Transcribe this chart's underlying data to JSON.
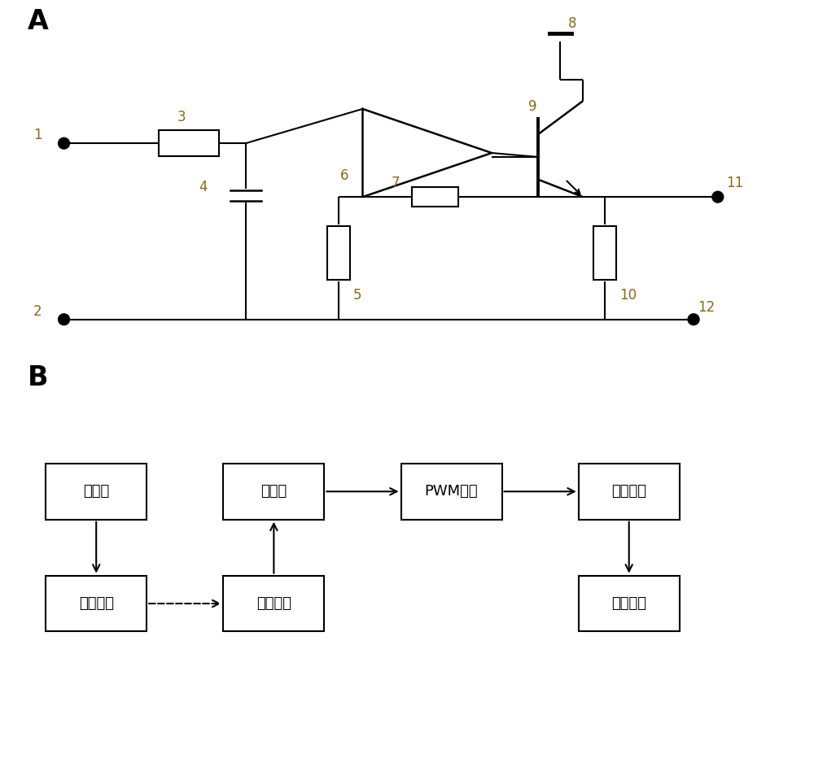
{
  "bg_color": "#ffffff",
  "line_color": "#000000",
  "label_color": "#8B6914",
  "figsize": [
    10.0,
    9.43
  ],
  "dpi": 100,
  "panel_A_label": "A",
  "panel_B_label": "B",
  "block_labels_top": [
    "上位机",
    "下位机",
    "PWM生成",
    "驱动电路"
  ],
  "block_labels_bot": [
    "蓝牙模块",
    "蓝牙模块",
    "震动电机"
  ],
  "node_labels": [
    "1",
    "2",
    "3",
    "4",
    "5",
    "6",
    "7",
    "8",
    "9",
    "10",
    "11",
    "12"
  ]
}
